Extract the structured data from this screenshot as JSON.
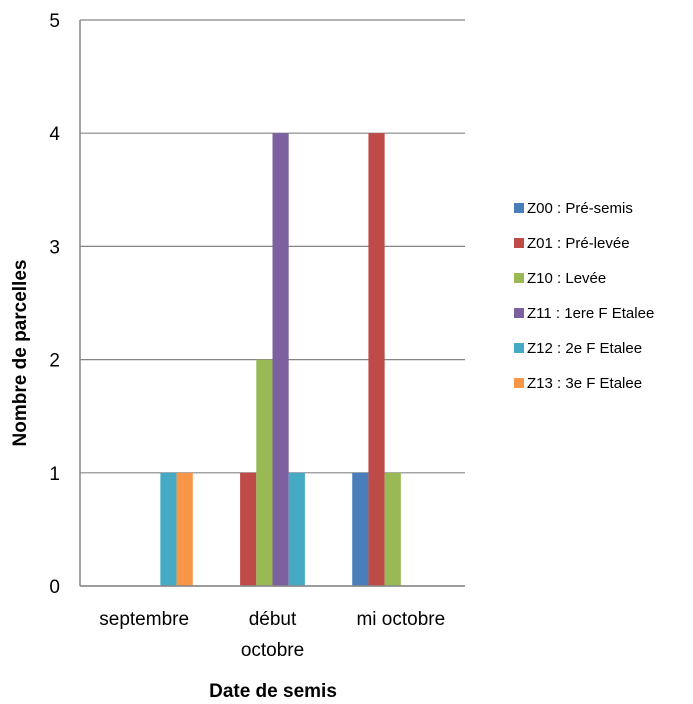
{
  "chart_data": {
    "type": "bar",
    "categories": [
      "septembre",
      "début octobre",
      "mi octobre"
    ],
    "category_lines": [
      [
        "septembre"
      ],
      [
        "début",
        "octobre"
      ],
      [
        "mi octobre"
      ]
    ],
    "series": [
      {
        "name": "Z00 : Pré-semis",
        "color": "#4A7EBB",
        "values": [
          0,
          0,
          1
        ]
      },
      {
        "name": "Z01 : Pré-levée",
        "color": "#BE4B48",
        "values": [
          0,
          1,
          4
        ]
      },
      {
        "name": "Z10 : Levée",
        "color": "#98B954",
        "values": [
          0,
          2,
          1
        ]
      },
      {
        "name": "Z11 : 1ere F Etalee",
        "color": "#7D60A0",
        "values": [
          0,
          4,
          0
        ]
      },
      {
        "name": "Z12 : 2e F Etalee",
        "color": "#46AAC5",
        "values": [
          1,
          1,
          0
        ]
      },
      {
        "name": "Z13 : 3e F Etalee",
        "color": "#F79646",
        "values": [
          1,
          0,
          0
        ]
      }
    ],
    "xlabel": "Date de semis",
    "ylabel": "Nombre de parcelles",
    "ylim": [
      0,
      5
    ],
    "yticks": [
      "0",
      "1",
      "2",
      "3",
      "4",
      "5"
    ],
    "grid": true,
    "legend_position": "right"
  }
}
